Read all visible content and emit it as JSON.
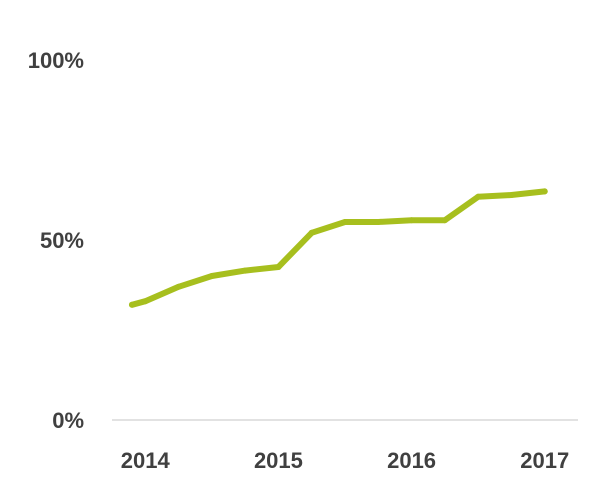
{
  "chart_data": {
    "type": "line",
    "title": "",
    "xlabel": "",
    "ylabel": "",
    "x_tick_labels": [
      "2014",
      "2015",
      "2016",
      "2017"
    ],
    "y_tick_labels": [
      "0%",
      "50%",
      "100%"
    ],
    "y_ticks": [
      0,
      50,
      100
    ],
    "ylim": [
      0,
      100
    ],
    "xlim": [
      2013.75,
      2017.25
    ],
    "grid": false,
    "legend": "none",
    "color": "#a7bf1e",
    "series": [
      {
        "x": [
          2013.9,
          2014.0,
          2014.25,
          2014.5,
          2014.75,
          2015.0,
          2015.25,
          2015.5,
          2015.75,
          2016.0,
          2016.25,
          2016.5,
          2016.75,
          2017.0
        ],
        "values": [
          32,
          33,
          37,
          40,
          41.5,
          42.5,
          52,
          55,
          55,
          55.5,
          55.5,
          62,
          62.5,
          63.5
        ]
      }
    ]
  }
}
